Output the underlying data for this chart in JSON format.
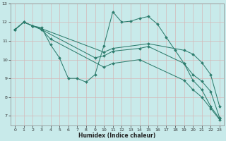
{
  "xlabel": "Humidex (Indice chaleur)",
  "background_color": "#c8eaea",
  "grid_color": "#b8d8d8",
  "line_color": "#2e7d6e",
  "xlim": [
    -0.5,
    23.5
  ],
  "ylim": [
    6.5,
    13.0
  ],
  "yticks": [
    7,
    8,
    9,
    10,
    11,
    12,
    13
  ],
  "xticks": [
    0,
    1,
    2,
    3,
    4,
    5,
    6,
    7,
    8,
    9,
    10,
    11,
    12,
    13,
    14,
    15,
    16,
    17,
    18,
    19,
    20,
    21,
    22,
    23
  ],
  "series": [
    {
      "x": [
        0,
        1,
        2,
        3,
        4,
        5,
        6,
        7,
        8,
        9,
        10,
        11,
        12,
        13,
        14,
        15,
        16,
        17,
        18,
        19,
        20,
        21,
        22,
        23
      ],
      "y": [
        11.6,
        12.0,
        11.8,
        11.7,
        10.8,
        10.1,
        9.0,
        9.0,
        8.8,
        9.2,
        10.75,
        12.55,
        12.0,
        12.05,
        12.2,
        12.3,
        11.9,
        11.2,
        10.5,
        9.8,
        8.9,
        8.4,
        7.5,
        6.85
      ]
    },
    {
      "x": [
        0,
        1,
        2,
        3,
        10,
        11,
        15,
        19,
        20,
        21,
        22,
        23
      ],
      "y": [
        11.6,
        12.0,
        11.8,
        11.65,
        10.4,
        10.6,
        10.85,
        10.5,
        10.3,
        9.85,
        9.2,
        7.5
      ]
    },
    {
      "x": [
        0,
        1,
        2,
        3,
        9,
        10,
        11,
        14,
        15,
        19,
        20,
        21,
        22,
        23
      ],
      "y": [
        11.6,
        12.0,
        11.8,
        11.6,
        10.1,
        10.2,
        10.45,
        10.6,
        10.7,
        9.8,
        9.2,
        8.85,
        8.3,
        6.9
      ]
    },
    {
      "x": [
        0,
        1,
        2,
        3,
        4,
        10,
        11,
        14,
        19,
        20,
        21,
        22,
        23
      ],
      "y": [
        11.6,
        12.0,
        11.8,
        11.6,
        11.1,
        9.6,
        9.8,
        10.0,
        8.9,
        8.4,
        8.0,
        7.4,
        6.8
      ]
    }
  ]
}
